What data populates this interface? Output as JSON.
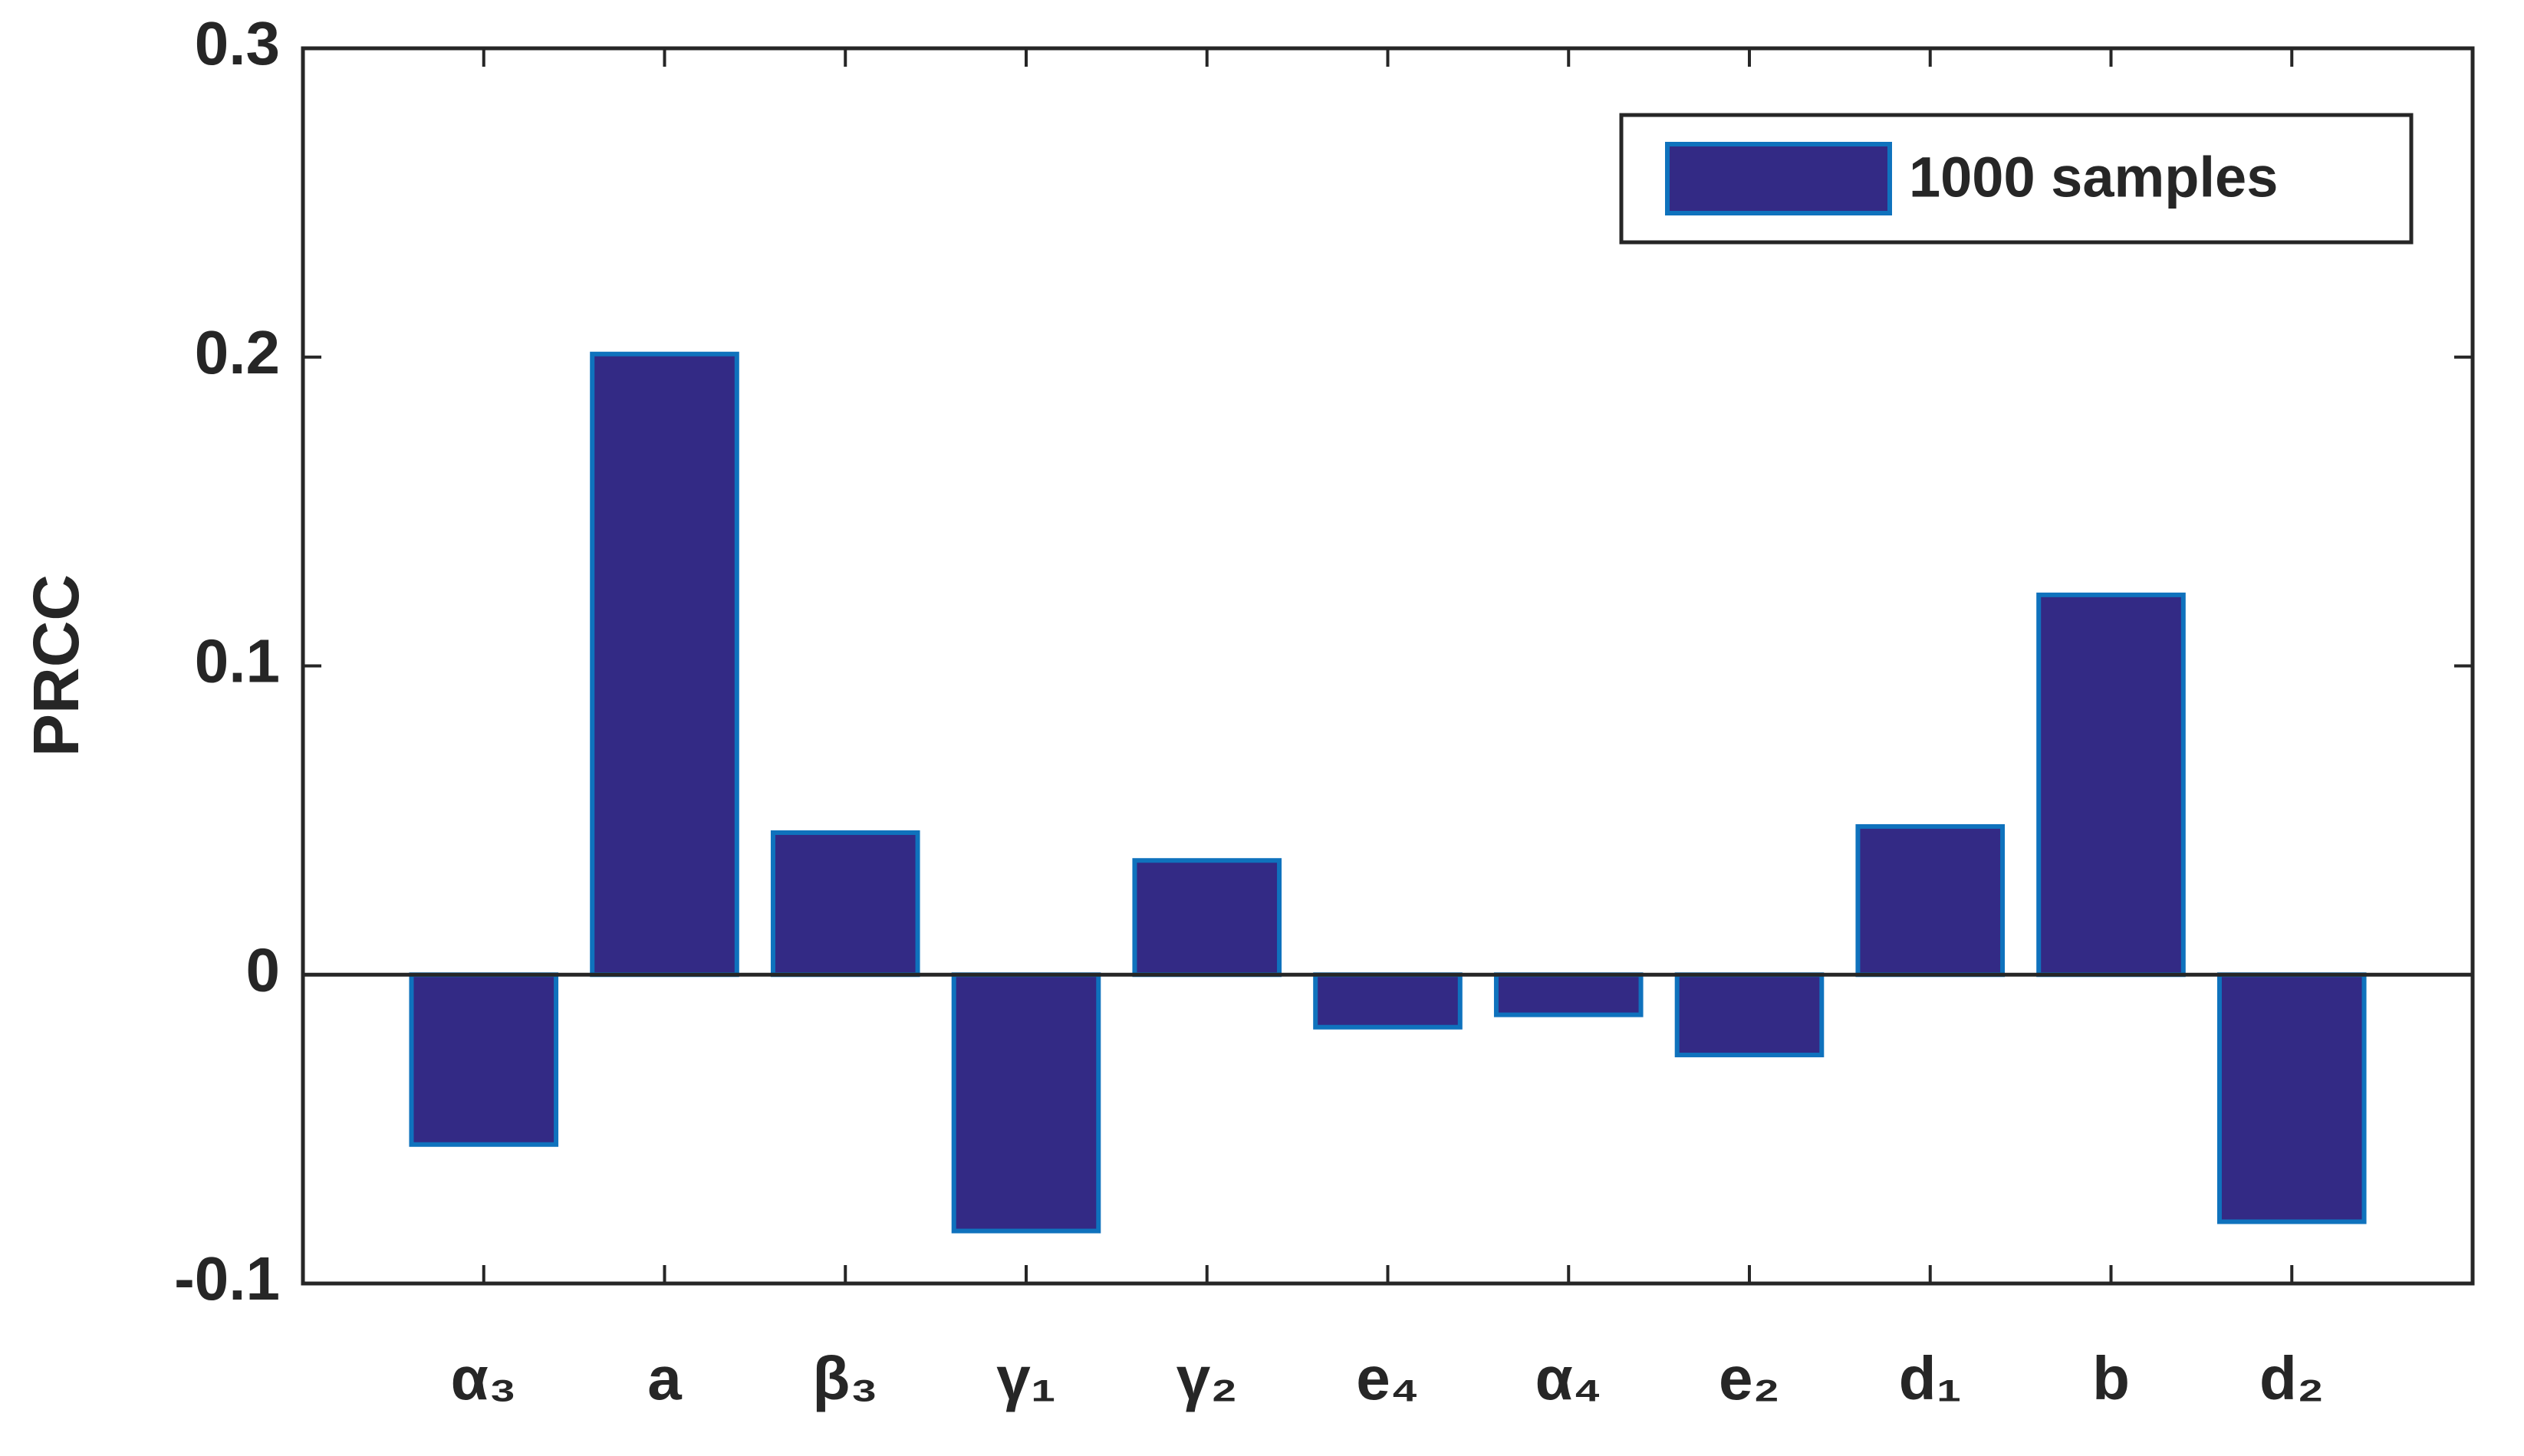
{
  "chart_data": {
    "type": "bar",
    "y_label": "PRCC",
    "categories": [
      "α₃",
      "a",
      "β₃",
      "γ₁",
      "γ₂",
      "e₄",
      "α₄",
      "e₂",
      "d₁",
      "b",
      "d₂"
    ],
    "series": [
      {
        "name": "1000 samples",
        "color": "#332a85",
        "edge_color": "#0f72bd",
        "values": [
          -0.055,
          0.201,
          0.046,
          -0.083,
          0.037,
          -0.017,
          -0.013,
          -0.026,
          0.048,
          0.123,
          -0.08
        ]
      }
    ],
    "ylim": [
      -0.1,
      0.3
    ],
    "yticks": [
      -0.1,
      0,
      0.1,
      0.2,
      0.3
    ],
    "legend": "upper right"
  }
}
